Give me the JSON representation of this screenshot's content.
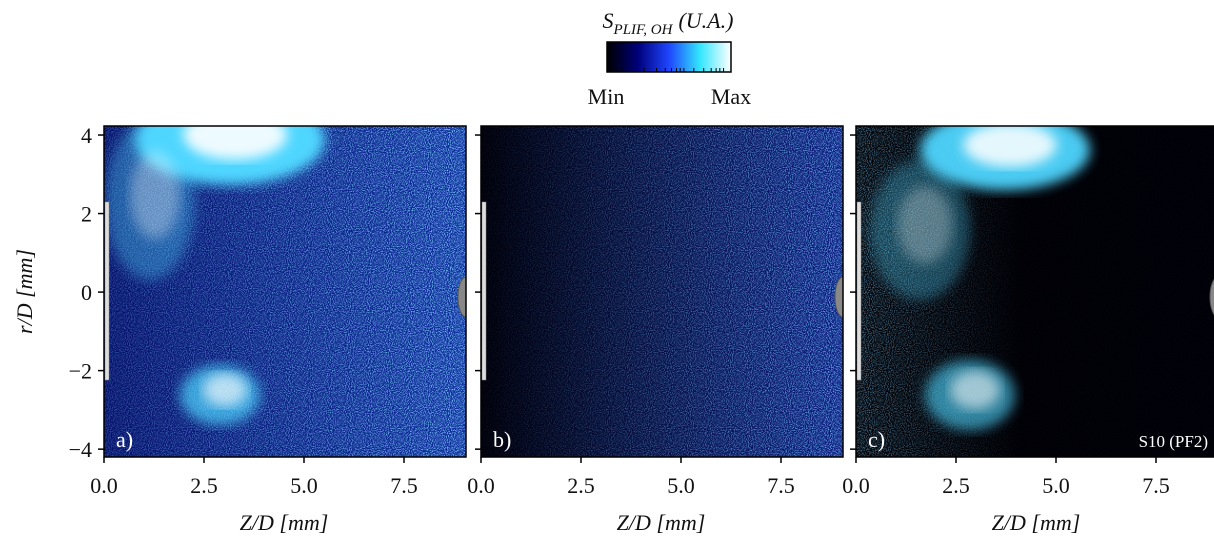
{
  "colorbar": {
    "symbol": "S",
    "subscript": "PLIF, OH",
    "unit": "(U.A.)",
    "min_label": "Min",
    "max_label": "Max",
    "colormap": [
      "#000000",
      "#00007a",
      "#1f45ff",
      "#33e6ff",
      "#ffffff"
    ]
  },
  "chart_data": [
    {
      "type": "image",
      "panel_label": "a)",
      "xlabel": "Z/D [mm]",
      "ylabel": "r/D [mm]",
      "xlim": [
        0,
        9.05
      ],
      "ylim": [
        -4.2,
        4.23
      ],
      "xticks": [
        {
          "value": 0,
          "label": "0.0"
        },
        2.5,
        {
          "value": 5,
          "label": "5.0"
        },
        7.5
      ],
      "yticks": [
        {
          "value": -4,
          "label": "−4"
        },
        {
          "value": -2,
          "label": "−2"
        },
        0,
        2,
        4
      ]
    },
    {
      "type": "image",
      "panel_label": "b)",
      "xlabel": "Z/D [mm]",
      "xlim": [
        0,
        9.05
      ],
      "ylim": [
        -4.2,
        4.23
      ],
      "xticks": [
        {
          "value": 0,
          "label": "0.0"
        },
        2.5,
        {
          "value": 5,
          "label": "5.0"
        },
        7.5
      ],
      "yticks": [
        -4,
        -2,
        0,
        2,
        4
      ]
    },
    {
      "type": "image",
      "panel_label": "c)",
      "xlabel": "Z/D [mm]",
      "annotation": "S10 (PF2)",
      "xlim": [
        0,
        9.05
      ],
      "ylim": [
        -4.2,
        4.23
      ],
      "xticks": [
        {
          "value": 0,
          "label": "0.0"
        },
        2.5,
        {
          "value": 5,
          "label": "5.0"
        },
        7.5
      ],
      "yticks": [
        -4,
        -2,
        0,
        2,
        4
      ]
    }
  ]
}
